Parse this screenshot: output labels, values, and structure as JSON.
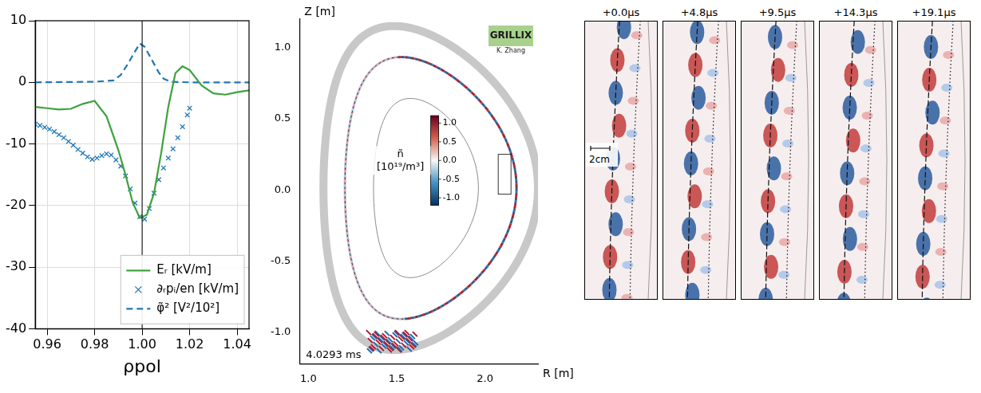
{
  "chart_data": [
    {
      "type": "line",
      "xlabel": "ρpol",
      "xlim": [
        0.955,
        1.045
      ],
      "xticks": [
        0.96,
        0.98,
        {
          "value": 1.0,
          "label": "1.00"
        },
        1.02,
        1.04
      ],
      "ylim": [
        -40,
        10
      ],
      "yticks": [
        -40,
        -30,
        -20,
        -10,
        0,
        10
      ],
      "grid": true,
      "legend": "lower right",
      "vline": 1.0,
      "series": [
        {
          "name": "Eᵣ [kV/m]",
          "color": "#3ca23c",
          "line_style": "solid",
          "marker": "none",
          "x": [
            0.955,
            0.96,
            0.965,
            0.97,
            0.975,
            0.98,
            0.985,
            0.99,
            0.993,
            0.996,
            0.999,
            1.002,
            1.005,
            1.008,
            1.011,
            1.014,
            1.017,
            1.02,
            1.025,
            1.03,
            1.035,
            1.04,
            1.045
          ],
          "values": [
            -4.0,
            -4.2,
            -4.4,
            -4.3,
            -3.5,
            -3.0,
            -5.5,
            -11.0,
            -15.0,
            -19.5,
            -22.0,
            -21.5,
            -18.0,
            -11.5,
            -4.0,
            1.5,
            2.6,
            2.0,
            -0.5,
            -1.8,
            -2.0,
            -1.6,
            -1.3
          ]
        },
        {
          "name": "∂ᵣpᵢ/en [kV/m]",
          "color": "#1f77b4",
          "line_style": "none",
          "marker": "x",
          "x": [
            0.955,
            0.957,
            0.959,
            0.961,
            0.963,
            0.965,
            0.967,
            0.969,
            0.971,
            0.973,
            0.975,
            0.977,
            0.979,
            0.981,
            0.983,
            0.985,
            0.987,
            0.989,
            0.991,
            0.993,
            0.995,
            0.997,
            0.999,
            1.001,
            1.003,
            1.005,
            1.007,
            1.009,
            1.011,
            1.013,
            1.015,
            1.017,
            1.019,
            1.02
          ],
          "values": [
            -6.8,
            -7.0,
            -7.3,
            -7.6,
            -8.0,
            -8.5,
            -9.0,
            -9.6,
            -10.2,
            -10.9,
            -11.5,
            -12.1,
            -12.5,
            -12.3,
            -11.9,
            -11.6,
            -11.8,
            -12.6,
            -13.6,
            -15.2,
            -17.3,
            -19.6,
            -21.8,
            -22.2,
            -20.5,
            -18.0,
            -15.8,
            -13.9,
            -12.3,
            -10.8,
            -9.0,
            -7.2,
            -5.3,
            -4.2
          ]
        },
        {
          "name": "φ̃² [V²/10²]",
          "color": "#1f77b4",
          "line_style": "dashed",
          "marker": "none",
          "x": [
            0.955,
            0.98,
            0.988,
            0.991,
            0.994,
            0.997,
            0.999,
            1.001,
            1.003,
            1.005,
            1.007,
            1.009,
            1.012,
            1.02,
            1.045
          ],
          "values": [
            0.0,
            0.1,
            0.3,
            1.2,
            3.0,
            5.0,
            6.3,
            5.8,
            4.4,
            3.0,
            1.6,
            0.6,
            0.1,
            0.0,
            0.0
          ]
        }
      ]
    },
    {
      "type": "image",
      "xlabel": "R [m]",
      "ylabel": "Z [m]",
      "xlim": [
        0.95,
        2.3
      ],
      "xticks": [
        {
          "value": 1.0,
          "label": "1.0"
        },
        1.5,
        {
          "value": 2.0,
          "label": "2.0"
        }
      ],
      "ylim": [
        -1.22,
        1.2
      ],
      "yticks": [
        {
          "value": -1.0,
          "label": "-1.0"
        },
        -0.5,
        {
          "value": 0.0,
          "label": "0.0"
        },
        0.5,
        {
          "value": 1.0,
          "label": "1.0"
        }
      ],
      "grid": false,
      "time_label": "4.0293 ms",
      "logo": "GRILLIX",
      "author": "K. Zhang",
      "colorbar_label": "ñ\n[10¹⁹/m³]",
      "colorbar_range": [
        -1.2,
        1.2
      ],
      "colorbar_ticks": [
        {
          "value": 1.0,
          "label": "1.0"
        },
        0.5,
        {
          "value": 0.0,
          "label": "0.0"
        },
        -0.5,
        {
          "value": -1.0,
          "label": "-1.0"
        }
      ]
    },
    {
      "type": "image_sequence",
      "titles": [
        "+0.0μs",
        "+4.8μs",
        "+9.5μs",
        "+14.3μs",
        "+19.1μs"
      ],
      "scale_label": "2cm"
    }
  ]
}
